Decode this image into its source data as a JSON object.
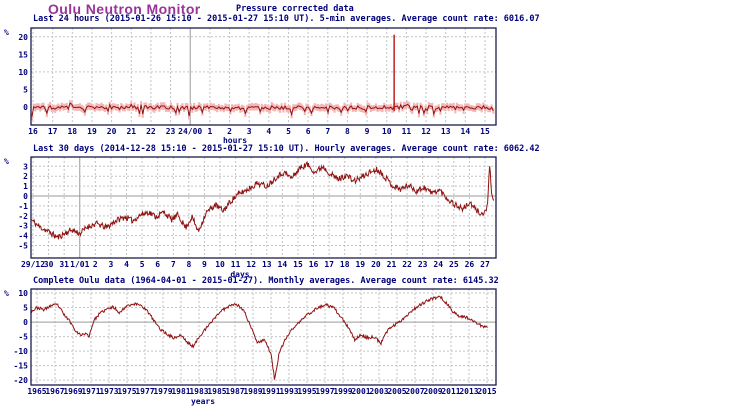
{
  "header": {
    "title": "Oulu Neutron Monitor",
    "subtitle": "Pressure corrected data"
  },
  "colors": {
    "header_title": "#993399",
    "text_navy": "#00007a",
    "frame": "#1b1b4b",
    "grid_dashed": "#c3c3c3",
    "grid_solid": "#9a9a9a",
    "series_red": "#8f1212",
    "spike_red": "#bb0f0f",
    "band_pink": "#f3b7b7"
  },
  "chart_data": [
    {
      "type": "bar",
      "title": "Last 24 hours (2015-01-26 15:10 - 2015-01-27 15:10 UT). 5-min averages. Average count rate: 6016.07",
      "ylabel": "%",
      "xlabel": "hours",
      "ylim": [
        -5.1,
        22.5
      ],
      "yticks": [
        20,
        15,
        10,
        5,
        0
      ],
      "grid_y_dashed": [
        20,
        10
      ],
      "zero_solid": false,
      "xticklabels": [
        "16",
        "17",
        "18",
        "19",
        "20",
        "21",
        "22",
        "23",
        "24/00",
        "1",
        "2",
        "3",
        "4",
        "5",
        "6",
        "7",
        "8",
        "9",
        "10",
        "11",
        "12",
        "13",
        "14",
        "15"
      ],
      "solid_xtick_index": 8,
      "n_points": 280,
      "seed": 7,
      "base": -0.15,
      "noise_amp": 0.55,
      "dip_prob": 0.12,
      "dip_amp": 1.5,
      "band_halfwidth": 0.8,
      "spike": {
        "frac": 0.782,
        "value": 20.6
      }
    },
    {
      "type": "line",
      "title": "Last 30 days (2014-12-28 15:10 - 2015-01-27 15:10 UT). Hourly averages. Average count rate: 6062.42",
      "ylabel": "%",
      "xlabel": "days",
      "ylim": [
        -6.26,
        3.94
      ],
      "yticks": [
        3,
        2,
        1,
        0,
        -1,
        -2,
        -3,
        -4,
        -5
      ],
      "grid_y_dashed": [
        3,
        2,
        1,
        -1,
        -2,
        -3,
        -4,
        -5
      ],
      "zero_solid": true,
      "xticklabels": [
        "29/12",
        "30",
        "31",
        "1/01",
        "2",
        "3",
        "4",
        "5",
        "6",
        "7",
        "8",
        "9",
        "10",
        "11",
        "12",
        "13",
        "14",
        "15",
        "16",
        "17",
        "18",
        "19",
        "20",
        "21",
        "22",
        "23",
        "24",
        "25",
        "26",
        "27"
      ],
      "solid_xtick_index": 3,
      "xtick_units": [
        0,
        29
      ],
      "data_x_range": [
        -0.1,
        29.55
      ],
      "n_points": 700,
      "seed": 11,
      "jitter": 0.3,
      "keypoints": [
        [
          -0.1,
          -2.4
        ],
        [
          0.4,
          -3.1
        ],
        [
          1.0,
          -3.6
        ],
        [
          1.6,
          -4.2
        ],
        [
          2.0,
          -3.8
        ],
        [
          2.5,
          -3.4
        ],
        [
          3.0,
          -3.8
        ],
        [
          3.5,
          -3.1
        ],
        [
          4.1,
          -2.8
        ],
        [
          4.7,
          -3.2
        ],
        [
          5.3,
          -2.5
        ],
        [
          5.9,
          -2.1
        ],
        [
          6.4,
          -2.5
        ],
        [
          6.9,
          -1.9
        ],
        [
          7.4,
          -1.6
        ],
        [
          7.9,
          -2.1
        ],
        [
          8.4,
          -1.6
        ],
        [
          8.9,
          -2.4
        ],
        [
          9.3,
          -1.9
        ],
        [
          9.8,
          -3.2
        ],
        [
          10.2,
          -2.1
        ],
        [
          10.6,
          -3.6
        ],
        [
          11.1,
          -1.7
        ],
        [
          11.7,
          -0.9
        ],
        [
          12.2,
          -1.5
        ],
        [
          12.7,
          -0.5
        ],
        [
          13.2,
          0.2
        ],
        [
          13.8,
          0.7
        ],
        [
          14.4,
          1.3
        ],
        [
          15.0,
          1.0
        ],
        [
          15.6,
          1.9
        ],
        [
          16.1,
          2.4
        ],
        [
          16.6,
          1.8
        ],
        [
          17.1,
          2.8
        ],
        [
          17.6,
          3.2
        ],
        [
          18.1,
          2.4
        ],
        [
          18.6,
          3.0
        ],
        [
          19.1,
          2.2
        ],
        [
          19.6,
          1.7
        ],
        [
          20.1,
          2.1
        ],
        [
          20.6,
          1.5
        ],
        [
          21.1,
          1.9
        ],
        [
          21.6,
          2.4
        ],
        [
          22.1,
          2.7
        ],
        [
          22.6,
          1.9
        ],
        [
          23.1,
          1.0
        ],
        [
          23.6,
          0.7
        ],
        [
          24.1,
          1.1
        ],
        [
          24.6,
          0.5
        ],
        [
          25.1,
          0.9
        ],
        [
          25.6,
          0.3
        ],
        [
          26.1,
          0.6
        ],
        [
          26.6,
          -0.3
        ],
        [
          27.1,
          -0.9
        ],
        [
          27.6,
          -1.3
        ],
        [
          28.0,
          -0.7
        ],
        [
          28.4,
          -1.4
        ],
        [
          28.9,
          -1.9
        ],
        [
          29.15,
          -1.0
        ],
        [
          29.3,
          2.9
        ],
        [
          29.45,
          -0.2
        ],
        [
          29.55,
          -0.6
        ]
      ]
    },
    {
      "type": "line",
      "title": "Complete Oulu data (1964-04-01 - 2015-01-27). Monthly averages. Average count rate: 6145.32",
      "ylabel": "%",
      "xlabel": "years",
      "ylim": [
        -21.7,
        11.4
      ],
      "yticks": [
        10,
        5,
        0,
        -5,
        -10,
        -15,
        -20
      ],
      "grid_y_dashed": [
        10,
        5,
        -5,
        -10,
        -15,
        -20
      ],
      "zero_solid": true,
      "xticklabels": [
        "1965",
        "1967",
        "1969",
        "1971",
        "1973",
        "1975",
        "1977",
        "1979",
        "1981",
        "1983",
        "1985",
        "1987",
        "1989",
        "1991",
        "1993",
        "1995",
        "1997",
        "1999",
        "2001",
        "2003",
        "2005",
        "2007",
        "2009",
        "2011",
        "2013",
        "2015"
      ],
      "solid_xtick_index": -1,
      "xtick_units": [
        1965,
        2015
      ],
      "data_x_range": [
        1964.3,
        2015.05
      ],
      "n_points": 610,
      "seed": 23,
      "jitter": 0.5,
      "keypoints": [
        [
          1964.3,
          3.5
        ],
        [
          1965.0,
          5.0
        ],
        [
          1965.8,
          4.2
        ],
        [
          1966.5,
          5.6
        ],
        [
          1967.3,
          6.0
        ],
        [
          1968.0,
          2.5
        ],
        [
          1968.6,
          0.5
        ],
        [
          1969.2,
          -2.5
        ],
        [
          1969.8,
          -4.5
        ],
        [
          1970.3,
          -4.0
        ],
        [
          1970.8,
          -4.8
        ],
        [
          1971.3,
          0.5
        ],
        [
          1972.0,
          3.0
        ],
        [
          1972.8,
          4.5
        ],
        [
          1973.5,
          5.2
        ],
        [
          1974.2,
          3.2
        ],
        [
          1975.0,
          5.8
        ],
        [
          1975.8,
          6.2
        ],
        [
          1976.5,
          6.0
        ],
        [
          1977.2,
          4.0
        ],
        [
          1978.0,
          0.5
        ],
        [
          1978.7,
          -2.5
        ],
        [
          1979.4,
          -4.0
        ],
        [
          1980.2,
          -5.5
        ],
        [
          1981.0,
          -4.5
        ],
        [
          1981.7,
          -7.0
        ],
        [
          1982.4,
          -8.5
        ],
        [
          1983.0,
          -5.0
        ],
        [
          1984.0,
          -1.5
        ],
        [
          1985.0,
          2.5
        ],
        [
          1986.0,
          5.0
        ],
        [
          1987.0,
          6.5
        ],
        [
          1988.0,
          4.0
        ],
        [
          1988.8,
          -2.0
        ],
        [
          1989.5,
          -7.0
        ],
        [
          1990.3,
          -6.0
        ],
        [
          1991.0,
          -11.0
        ],
        [
          1991.4,
          -19.8
        ],
        [
          1991.9,
          -11.0
        ],
        [
          1992.5,
          -6.5
        ],
        [
          1993.2,
          -3.0
        ],
        [
          1994.0,
          -0.5
        ],
        [
          1995.0,
          2.5
        ],
        [
          1996.0,
          4.5
        ],
        [
          1997.0,
          6.0
        ],
        [
          1998.0,
          4.8
        ],
        [
          1998.8,
          1.5
        ],
        [
          1999.5,
          -1.5
        ],
        [
          2000.3,
          -6.0
        ],
        [
          2001.0,
          -4.5
        ],
        [
          2001.8,
          -5.5
        ],
        [
          2002.5,
          -5.0
        ],
        [
          2003.2,
          -7.5
        ],
        [
          2004.0,
          -2.5
        ],
        [
          2005.0,
          -0.5
        ],
        [
          2005.8,
          1.5
        ],
        [
          2006.5,
          3.5
        ],
        [
          2007.3,
          5.5
        ],
        [
          2008.2,
          7.0
        ],
        [
          2009.0,
          8.2
        ],
        [
          2009.8,
          8.8
        ],
        [
          2010.5,
          6.5
        ],
        [
          2011.2,
          3.5
        ],
        [
          2012.0,
          2.0
        ],
        [
          2012.8,
          1.5
        ],
        [
          2013.5,
          0.5
        ],
        [
          2014.2,
          -1.0
        ],
        [
          2015.05,
          -2.0
        ]
      ]
    }
  ]
}
